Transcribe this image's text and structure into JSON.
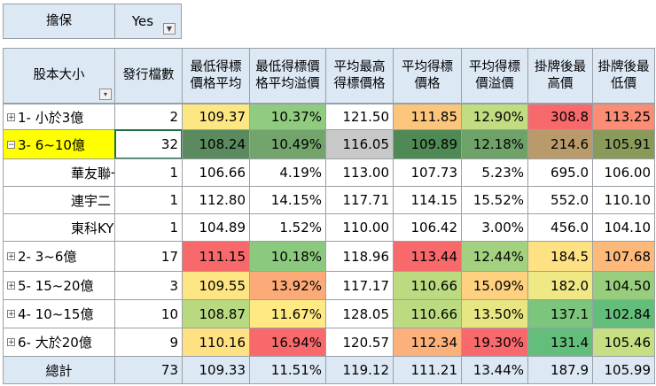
{
  "filter": {
    "label": "擔保",
    "value": "Yes",
    "filter_icon": "filter-funnel-icon"
  },
  "headers": {
    "row_label": "股本大小",
    "columns": [
      "發行檔數",
      "最低得標價格平均",
      "最低得標價格平均溢價",
      "平均最高得標價格",
      "平均得標價格",
      "平均得標價溢價",
      "掛牌後最高價",
      "掛牌後最低價"
    ],
    "sort_icon": "sort-dropdown-icon"
  },
  "rows": [
    {
      "label": "1- 小於3億",
      "type": "group",
      "expander": "⊞",
      "values": [
        "2",
        "109.37",
        "10.37%",
        "121.50",
        "111.85",
        "12.90%",
        "308.8",
        "113.25"
      ],
      "colors": [
        "#ffffff",
        "#fde783",
        "#8fcc7f",
        "#ffffff",
        "#fbc67c",
        "#c1dc81",
        "#f8696b",
        "#fa8d74"
      ]
    },
    {
      "label": "3- 6~10億",
      "type": "group-selected",
      "expander": "⊟",
      "values": [
        "32",
        "108.24",
        "10.49%",
        "116.05",
        "109.89",
        "12.18%",
        "214.6",
        "105.91"
      ],
      "colors": [
        "#ffffff",
        "#5a8a5e",
        "#73a46c",
        "#c8c8c8",
        "#4f8a55",
        "#6ea269",
        "#b99a6a",
        "#8a9a5a"
      ]
    },
    {
      "label": "華友聯一",
      "type": "child",
      "values": [
        "1",
        "106.66",
        "4.19%",
        "113.00",
        "107.73",
        "5.23%",
        "695.0",
        "106.00"
      ],
      "colors": [
        "#ffffff",
        "#ffffff",
        "#ffffff",
        "#ffffff",
        "#ffffff",
        "#ffffff",
        "#ffffff",
        "#ffffff"
      ]
    },
    {
      "label": "連宇二",
      "type": "child",
      "values": [
        "1",
        "112.80",
        "14.15%",
        "117.71",
        "114.15",
        "15.52%",
        "552.0",
        "110.10"
      ],
      "colors": [
        "#ffffff",
        "#ffffff",
        "#ffffff",
        "#ffffff",
        "#ffffff",
        "#ffffff",
        "#ffffff",
        "#ffffff"
      ]
    },
    {
      "label": "東科KY一",
      "type": "child",
      "values": [
        "1",
        "104.89",
        "1.52%",
        "110.00",
        "106.42",
        "3.00%",
        "456.0",
        "104.10"
      ],
      "colors": [
        "#ffffff",
        "#ffffff",
        "#ffffff",
        "#ffffff",
        "#ffffff",
        "#ffffff",
        "#ffffff",
        "#ffffff"
      ]
    },
    {
      "label": "2- 3~6億",
      "type": "group",
      "expander": "⊞",
      "values": [
        "17",
        "111.15",
        "10.18%",
        "118.96",
        "113.44",
        "12.44%",
        "184.5",
        "107.68"
      ],
      "colors": [
        "#ffffff",
        "#f8696b",
        "#8bca7e",
        "#ffffff",
        "#f8696b",
        "#a3d17f",
        "#fee182",
        "#fcb97a"
      ]
    },
    {
      "label": "5- 15~20億",
      "type": "group",
      "expander": "⊞",
      "values": [
        "3",
        "109.55",
        "13.92%",
        "117.17",
        "110.66",
        "15.09%",
        "182.0",
        "104.50"
      ],
      "colors": [
        "#ffffff",
        "#fee583",
        "#fcaa77",
        "#ffffff",
        "#bcdb81",
        "#fdd17f",
        "#f0e884",
        "#98cd7e"
      ]
    },
    {
      "label": "4- 10~15億",
      "type": "group",
      "expander": "⊞",
      "values": [
        "10",
        "108.87",
        "11.67%",
        "128.05",
        "110.66",
        "13.50%",
        "137.1",
        "102.84"
      ],
      "colors": [
        "#ffffff",
        "#b8d980",
        "#fee983",
        "#ffffff",
        "#bcdb81",
        "#e8e583",
        "#7cc57c",
        "#63be7b"
      ]
    },
    {
      "label": "6- 大於20億",
      "type": "group",
      "expander": "⊞",
      "values": [
        "9",
        "110.16",
        "16.94%",
        "120.57",
        "112.34",
        "19.30%",
        "131.4",
        "105.46"
      ],
      "colors": [
        "#ffffff",
        "#fee182",
        "#f8696b",
        "#ffffff",
        "#fcb07a",
        "#f8696b",
        "#63be7b",
        "#c5df82"
      ]
    },
    {
      "label": "總計",
      "type": "total",
      "values": [
        "73",
        "109.33",
        "11.51%",
        "119.12",
        "111.21",
        "13.44%",
        "187.9",
        "105.99"
      ],
      "colors": [
        "#dde8f5",
        "#dde8f5",
        "#dde8f5",
        "#dde8f5",
        "#dde8f5",
        "#dde8f5",
        "#dde8f5",
        "#dde8f5"
      ]
    }
  ]
}
